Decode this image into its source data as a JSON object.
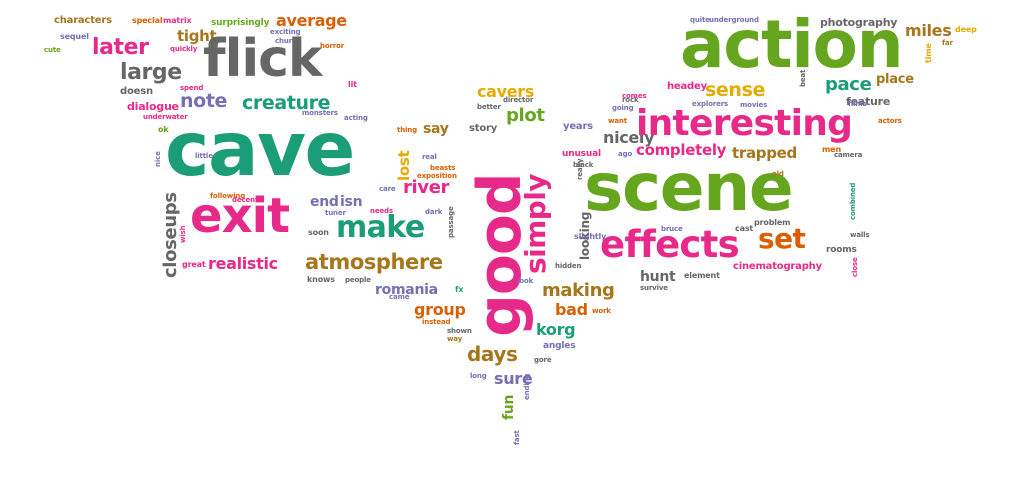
{
  "colors": {
    "pink": "#e7298a",
    "teal": "#1b9e77",
    "green": "#66a61e",
    "orange": "#d95f02",
    "gold": "#a6761d",
    "purple": "#7570b3",
    "gray": "#666666",
    "yellow": "#e6ab02"
  },
  "words": [
    {
      "text": "characters",
      "color": "gold"
    },
    {
      "text": "special",
      "color": "orange"
    },
    {
      "text": "matrix",
      "color": "pink"
    },
    {
      "text": "surprisingly",
      "color": "green"
    },
    {
      "text": "average",
      "color": "orange"
    },
    {
      "text": "sequel",
      "color": "purple"
    },
    {
      "text": "cute",
      "color": "green"
    },
    {
      "text": "later",
      "color": "pink"
    },
    {
      "text": "quickly",
      "color": "pink"
    },
    {
      "text": "tight",
      "color": "gold"
    },
    {
      "text": "exciting",
      "color": "purple"
    },
    {
      "text": "church",
      "color": "purple"
    },
    {
      "text": "horror",
      "color": "orange"
    },
    {
      "text": "flick",
      "color": "gray"
    },
    {
      "text": "large",
      "color": "gray"
    },
    {
      "text": "spend",
      "color": "pink"
    },
    {
      "text": "lit",
      "color": "pink"
    },
    {
      "text": "doesn",
      "color": "gray"
    },
    {
      "text": "note",
      "color": "purple"
    },
    {
      "text": "creature",
      "color": "teal"
    },
    {
      "text": "dialogue",
      "color": "pink"
    },
    {
      "text": "underwater",
      "color": "pink"
    },
    {
      "text": "monsters",
      "color": "purple"
    },
    {
      "text": "acting",
      "color": "purple"
    },
    {
      "text": "ok",
      "color": "green"
    },
    {
      "text": "cave",
      "color": "teal"
    },
    {
      "text": "nice",
      "color": "purple"
    },
    {
      "text": "little",
      "color": "purple"
    },
    {
      "text": "following",
      "color": "orange"
    },
    {
      "text": "decent",
      "color": "pink"
    },
    {
      "text": "closeups",
      "color": "gray"
    },
    {
      "text": "exit",
      "color": "pink"
    },
    {
      "text": "wish",
      "color": "pink"
    },
    {
      "text": "great",
      "color": "pink"
    },
    {
      "text": "realistic",
      "color": "pink"
    },
    {
      "text": "make",
      "color": "teal"
    },
    {
      "text": "end",
      "color": "purple"
    },
    {
      "text": "isn",
      "color": "purple"
    },
    {
      "text": "tuner",
      "color": "purple"
    },
    {
      "text": "soon",
      "color": "gray"
    },
    {
      "text": "atmosphere",
      "color": "gold"
    },
    {
      "text": "knows",
      "color": "gray"
    },
    {
      "text": "people",
      "color": "gray"
    },
    {
      "text": "care",
      "color": "purple"
    },
    {
      "text": "needs",
      "color": "pink"
    },
    {
      "text": "river",
      "color": "pink"
    },
    {
      "text": "beasts",
      "color": "orange"
    },
    {
      "text": "exposition",
      "color": "orange"
    },
    {
      "text": "dark",
      "color": "purple"
    },
    {
      "text": "passage",
      "color": "gray"
    },
    {
      "text": "real",
      "color": "purple"
    },
    {
      "text": "lost",
      "color": "yellow"
    },
    {
      "text": "thing",
      "color": "orange"
    },
    {
      "text": "say",
      "color": "gold"
    },
    {
      "text": "romania",
      "color": "purple"
    },
    {
      "text": "came",
      "color": "purple"
    },
    {
      "text": "fx",
      "color": "teal"
    },
    {
      "text": "group",
      "color": "orange"
    },
    {
      "text": "instead",
      "color": "orange"
    },
    {
      "text": "shown",
      "color": "gray"
    },
    {
      "text": "way",
      "color": "gold"
    },
    {
      "text": "story",
      "color": "gray"
    },
    {
      "text": "better",
      "color": "gray"
    },
    {
      "text": "director",
      "color": "gray"
    },
    {
      "text": "plot",
      "color": "green"
    },
    {
      "text": "cavers",
      "color": "yellow"
    },
    {
      "text": "good",
      "color": "pink"
    },
    {
      "text": "simply",
      "color": "pink"
    },
    {
      "text": "years",
      "color": "purple"
    },
    {
      "text": "days",
      "color": "gold"
    },
    {
      "text": "long",
      "color": "purple"
    },
    {
      "text": "sure",
      "color": "purple"
    },
    {
      "text": "fun",
      "color": "green"
    },
    {
      "text": "ending",
      "color": "purple"
    },
    {
      "text": "fast",
      "color": "purple"
    },
    {
      "text": "look",
      "color": "purple"
    },
    {
      "text": "making",
      "color": "gold"
    },
    {
      "text": "bad",
      "color": "orange"
    },
    {
      "text": "work",
      "color": "orange"
    },
    {
      "text": "korg",
      "color": "teal"
    },
    {
      "text": "angles",
      "color": "purple"
    },
    {
      "text": "gore",
      "color": "gray"
    },
    {
      "text": "looking",
      "color": "gray"
    },
    {
      "text": "slightly",
      "color": "purple"
    },
    {
      "text": "hidden",
      "color": "gray"
    },
    {
      "text": "really",
      "color": "gray"
    },
    {
      "text": "black",
      "color": "gray"
    },
    {
      "text": "unusual",
      "color": "pink"
    },
    {
      "text": "nicely",
      "color": "gray"
    },
    {
      "text": "ago",
      "color": "purple"
    },
    {
      "text": "completely",
      "color": "pink"
    },
    {
      "text": "trapped",
      "color": "gold"
    },
    {
      "text": "interesting",
      "color": "pink"
    },
    {
      "text": "scene",
      "color": "green"
    },
    {
      "text": "effects",
      "color": "pink"
    },
    {
      "text": "hunt",
      "color": "gray"
    },
    {
      "text": "element",
      "color": "gray"
    },
    {
      "text": "survive",
      "color": "gray"
    },
    {
      "text": "bruce",
      "color": "purple"
    },
    {
      "text": "cast",
      "color": "gray"
    },
    {
      "text": "problem",
      "color": "gray"
    },
    {
      "text": "set",
      "color": "orange"
    },
    {
      "text": "cinematography",
      "color": "pink"
    },
    {
      "text": "rooms",
      "color": "gray"
    },
    {
      "text": "close",
      "color": "pink"
    },
    {
      "text": "walls",
      "color": "gray"
    },
    {
      "text": "combined",
      "color": "teal"
    },
    {
      "text": "men",
      "color": "orange"
    },
    {
      "text": "camera",
      "color": "gray"
    },
    {
      "text": "old",
      "color": "gold"
    },
    {
      "text": "action",
      "color": "green"
    },
    {
      "text": "sense",
      "color": "yellow"
    },
    {
      "text": "pace",
      "color": "teal"
    },
    {
      "text": "headey",
      "color": "pink"
    },
    {
      "text": "rock",
      "color": "gray"
    },
    {
      "text": "comes",
      "color": "pink"
    },
    {
      "text": "want",
      "color": "orange"
    },
    {
      "text": "going",
      "color": "purple"
    },
    {
      "text": "explorers",
      "color": "purple"
    },
    {
      "text": "movies",
      "color": "purple"
    },
    {
      "text": "feature",
      "color": "gray"
    },
    {
      "text": "films",
      "color": "purple"
    },
    {
      "text": "place",
      "color": "gold"
    },
    {
      "text": "actors",
      "color": "orange"
    },
    {
      "text": "beat",
      "color": "gray"
    },
    {
      "text": "quite",
      "color": "purple"
    },
    {
      "text": "underground",
      "color": "purple"
    },
    {
      "text": "photography",
      "color": "gray"
    },
    {
      "text": "miles",
      "color": "gold"
    },
    {
      "text": "deep",
      "color": "yellow"
    },
    {
      "text": "time",
      "color": "yellow"
    },
    {
      "text": "far",
      "color": "gold"
    }
  ]
}
